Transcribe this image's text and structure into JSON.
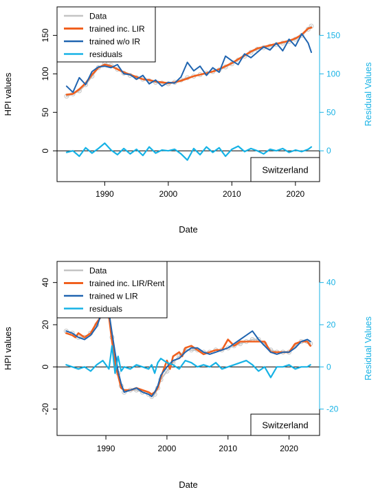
{
  "colors": {
    "data": "#c4c4c4",
    "trained_inc": "#f0601e",
    "trained_w": "#1f64b0",
    "residuals": "#16b2e5",
    "axis": "#000000",
    "right_axis": "#16b2e5"
  },
  "chart_data": [
    {
      "type": "line",
      "xlabel": "Date",
      "ylabel": "HPI values",
      "y2label": "Residual Values",
      "annotation": "Switzerland",
      "grid": false,
      "legend_position": "top-left",
      "x_ticks": [
        1990,
        2000,
        2010,
        2020
      ],
      "y_ticks": [
        0,
        50,
        100,
        150
      ],
      "y2_ticks": [
        0,
        50,
        100,
        150
      ],
      "xlim": [
        1982.5,
        2023.8
      ],
      "ylim": [
        -40,
        187
      ],
      "series": [
        {
          "name": "Data",
          "x": [
            1984,
            1985,
            1986,
            1987,
            1988,
            1989,
            1990,
            1991,
            1992,
            1993,
            1994,
            1995,
            1996,
            1997,
            1998,
            1999,
            2000,
            2001,
            2002,
            2003,
            2004,
            2005,
            2006,
            2007,
            2008,
            2009,
            2010,
            2011,
            2012,
            2013,
            2014,
            2015,
            2016,
            2017,
            2018,
            2019,
            2020,
            2021,
            2022,
            2022.5
          ],
          "y": [
            71,
            74,
            78,
            86,
            97,
            108,
            113,
            111,
            106,
            101,
            98,
            95,
            93,
            91,
            89,
            88,
            87,
            89,
            92,
            95,
            97,
            99,
            101,
            103,
            105,
            109,
            113,
            118,
            123,
            128,
            132,
            134,
            136,
            138,
            140,
            142,
            145,
            150,
            158,
            162
          ]
        },
        {
          "name": "trained inc. LIR",
          "x": [
            1984,
            1985,
            1986,
            1987,
            1988,
            1989,
            1990,
            1991,
            1992,
            1993,
            1994,
            1995,
            1996,
            1997,
            1998,
            1999,
            2000,
            2001,
            2002,
            2003,
            2004,
            2005,
            2006,
            2007,
            2008,
            2009,
            2010,
            2011,
            2012,
            2013,
            2014,
            2015,
            2016,
            2017,
            2018,
            2019,
            2020,
            2021,
            2022,
            2022.5
          ],
          "y": [
            73,
            74,
            80,
            88,
            99,
            108,
            112,
            110,
            106,
            102,
            99,
            96,
            93,
            92,
            90,
            89,
            88,
            89,
            91,
            94,
            97,
            99,
            101,
            103,
            106,
            110,
            114,
            119,
            124,
            129,
            133,
            135,
            137,
            139,
            141,
            143,
            146,
            151,
            159,
            160
          ]
        },
        {
          "name": "trained w/o IR",
          "x": [
            1984,
            1985,
            1986,
            1987,
            1988,
            1989,
            1990,
            1991,
            1992,
            1993,
            1994,
            1995,
            1996,
            1997,
            1998,
            1999,
            2000,
            2001,
            2002,
            2003,
            2004,
            2005,
            2006,
            2007,
            2008,
            2009,
            2010,
            2011,
            2012,
            2013,
            2014,
            2015,
            2016,
            2017,
            2018,
            2019,
            2020,
            2021,
            2022,
            2022.5
          ],
          "y": [
            84,
            76,
            95,
            86,
            103,
            109,
            110,
            108,
            112,
            100,
            99,
            93,
            98,
            87,
            92,
            84,
            89,
            88,
            96,
            115,
            104,
            110,
            98,
            108,
            102,
            123,
            117,
            112,
            126,
            121,
            128,
            135,
            131,
            140,
            130,
            145,
            136,
            152,
            140,
            128
          ]
        },
        {
          "name": "residuals",
          "x": [
            1984,
            1985,
            1986,
            1987,
            1988,
            1989,
            1990,
            1991,
            1992,
            1993,
            1994,
            1995,
            1996,
            1997,
            1998,
            1999,
            2000,
            2001,
            2002,
            2003,
            2004,
            2005,
            2006,
            2007,
            2008,
            2009,
            2010,
            2011,
            2012,
            2013,
            2014,
            2015,
            2016,
            2017,
            2018,
            2019,
            2020,
            2021,
            2022,
            2022.5
          ],
          "y": [
            -2,
            0,
            -7,
            4,
            -3,
            3,
            10,
            1,
            -5,
            3,
            -4,
            2,
            -6,
            5,
            -3,
            1,
            0,
            2,
            -4,
            -12,
            3,
            -5,
            5,
            -2,
            4,
            -7,
            2,
            6,
            -1,
            3,
            0,
            -4,
            2,
            0,
            3,
            -2,
            1,
            -1,
            2,
            5
          ],
          "axis": "right"
        }
      ]
    },
    {
      "type": "line",
      "xlabel": "Date",
      "ylabel": "HPI values",
      "y2label": "Residual Values",
      "annotation": "Switzerland",
      "grid": false,
      "legend_position": "top-left",
      "x_ticks": [
        1990,
        2000,
        2010,
        2020
      ],
      "y_ticks": [
        -20,
        0,
        20,
        40
      ],
      "y2_ticks": [
        -20,
        0,
        20,
        40
      ],
      "xlim": [
        1982,
        2025
      ],
      "ylim": [
        -32.5,
        50
      ],
      "series": [
        {
          "name": "Data",
          "x": [
            1983.5,
            1984.5,
            1985.5,
            1986.5,
            1987.5,
            1988.5,
            1989.5,
            1990.5,
            1991,
            1991.5,
            1992,
            1992.5,
            1993,
            1994,
            1995,
            1996,
            1997,
            1997.5,
            1998,
            1998.5,
            1999,
            2000,
            2001,
            2002,
            2003,
            2004,
            2005,
            2006,
            2007,
            2008,
            2009,
            2010,
            2011,
            2012,
            2013,
            2014,
            2015,
            2016,
            2017,
            2018,
            2019,
            2020,
            2021,
            2022,
            2023,
            2023.5
          ],
          "y": [
            17,
            16,
            14,
            14,
            16,
            20,
            26,
            24,
            14,
            4,
            -3,
            -9,
            -12,
            -11,
            -11,
            -12,
            -13,
            -14,
            -13,
            -10,
            -6,
            -2,
            2,
            5,
            8,
            8,
            8,
            7,
            7,
            8,
            8,
            9,
            10,
            11,
            12,
            13,
            13,
            11,
            8,
            7,
            7,
            7,
            10,
            12,
            12,
            11
          ]
        },
        {
          "name": "trained inc. LIR/Rent",
          "x": [
            1983.5,
            1984.5,
            1985,
            1985.5,
            1986.5,
            1987.5,
            1988.5,
            1989.5,
            1990,
            1990.5,
            1991,
            1991.5,
            1992,
            1992.5,
            1993,
            1994,
            1995,
            1996,
            1997,
            1997.5,
            1998,
            1998.5,
            1999,
            2000,
            2000.5,
            2001,
            2002,
            2002.5,
            2003,
            2004,
            2005,
            2006,
            2007,
            2008,
            2009,
            2010,
            2011,
            2012,
            2013,
            2014,
            2015,
            2016,
            2017,
            2018,
            2019,
            2020,
            2021,
            2022,
            2023,
            2023.5
          ],
          "y": [
            16,
            15,
            14,
            16,
            14,
            16,
            21,
            25,
            27,
            24,
            12,
            2,
            -4,
            -10,
            -11,
            -11,
            -10,
            -11,
            -12,
            -13,
            -12,
            -10,
            -5,
            3,
            -1,
            5,
            7,
            5,
            9,
            10,
            8,
            6,
            7,
            8,
            8,
            13,
            10,
            12,
            12,
            12,
            12,
            12,
            7,
            7,
            7,
            7,
            11,
            12,
            12,
            10
          ]
        },
        {
          "name": "trained w LIR",
          "x": [
            1983.5,
            1984.5,
            1985.5,
            1986.5,
            1987.5,
            1988.5,
            1989.5,
            1990.5,
            1991,
            1991.5,
            1992,
            1992.5,
            1993,
            1994,
            1995,
            1996,
            1997,
            1997.5,
            1998,
            1998.5,
            1999,
            2000,
            2001,
            2002,
            2003,
            2004,
            2005,
            2006,
            2007,
            2008,
            2009,
            2010,
            2011,
            2012,
            2013,
            2014,
            2015,
            2016,
            2017,
            2018,
            2019,
            2020,
            2021,
            2022,
            2023,
            2023.5
          ],
          "y": [
            17,
            16,
            14,
            13,
            15,
            19,
            27,
            26,
            16,
            7,
            -2,
            -8,
            -12,
            -11,
            -10,
            -12,
            -13,
            -14,
            -12,
            -9,
            -4,
            0,
            3,
            4,
            7,
            9,
            9,
            7,
            6,
            7,
            8,
            9,
            11,
            13,
            15,
            17,
            13,
            10,
            7,
            6,
            7,
            7,
            9,
            12,
            13,
            12
          ]
        },
        {
          "name": "residuals",
          "x": [
            1983.5,
            1984.5,
            1985.5,
            1986.5,
            1987.5,
            1988.5,
            1989.5,
            1990.5,
            1991,
            1991.5,
            1992,
            1992.5,
            1993,
            1994,
            1995,
            1996,
            1997,
            1997.5,
            1998,
            1998.5,
            1999,
            2000,
            2001,
            2002,
            2003,
            2004,
            2005,
            2006,
            2007,
            2008,
            2009,
            2010,
            2011,
            2012,
            2013,
            2014,
            2015,
            2016,
            2017,
            2018,
            2019,
            2020,
            2021,
            2022,
            2023,
            2023.5
          ],
          "y": [
            1,
            0,
            -1,
            0,
            -2,
            1,
            3,
            -1,
            10,
            -3,
            5,
            -2,
            0,
            -1,
            1,
            0,
            -1,
            1,
            -3,
            2,
            4,
            2,
            1,
            -1,
            3,
            2,
            0,
            1,
            0,
            2,
            -1,
            0,
            1,
            2,
            3,
            1,
            -2,
            0,
            -5,
            0,
            0,
            1,
            -1,
            0,
            0,
            1
          ],
          "axis": "right"
        }
      ]
    }
  ]
}
